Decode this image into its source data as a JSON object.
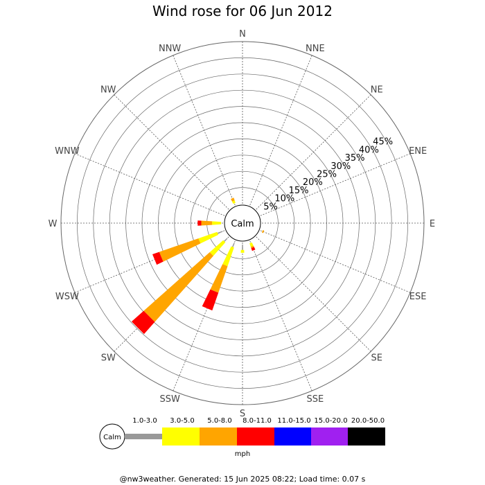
{
  "title": "Wind rose for 06 Jun 2012",
  "footer": "@nw3weather. Generated: 15 Jun 2025 08:22; Load time: 0.07 s",
  "chart_data": {
    "type": "windrose",
    "center_label": "Calm",
    "directions": [
      "N",
      "NNE",
      "NE",
      "ENE",
      "E",
      "ESE",
      "SE",
      "SSE",
      "S",
      "SSW",
      "SW",
      "WSW",
      "W",
      "WNW",
      "NW",
      "NNW"
    ],
    "radial_ticks": [
      "5%",
      "10%",
      "15%",
      "20%",
      "25%",
      "30%",
      "35%",
      "40%",
      "45%"
    ],
    "radial_max": 45,
    "speed_bins": [
      {
        "label": "1.0-3.0",
        "color": "#999999"
      },
      {
        "label": "3.0-5.0",
        "color": "#ffff00"
      },
      {
        "label": "5.0-8.0",
        "color": "#ffa500"
      },
      {
        "label": "8.0-11.0",
        "color": "#ff0000"
      },
      {
        "label": "11.0-15.0",
        "color": "#0000ff"
      },
      {
        "label": "15.0-20.0",
        "color": "#a020f0"
      },
      {
        "label": "20.0-50.0",
        "color": "#000000"
      }
    ],
    "unit": "mph",
    "values": [
      [
        0,
        0,
        0,
        0,
        0,
        0,
        0
      ],
      [
        0,
        0,
        0,
        0,
        0,
        0,
        0
      ],
      [
        0,
        0,
        0,
        0,
        0,
        0,
        0
      ],
      [
        0,
        0,
        0,
        0,
        0,
        0,
        0
      ],
      [
        0,
        0,
        0,
        0,
        0,
        0,
        0
      ],
      [
        0,
        0,
        0.4,
        0,
        0,
        0,
        0
      ],
      [
        0,
        0,
        0,
        0,
        0,
        0,
        0
      ],
      [
        0,
        1.0,
        0.4,
        0.8,
        0,
        0,
        0
      ],
      [
        1.5,
        0.8,
        0,
        0,
        0,
        0,
        0
      ],
      [
        1.2,
        5.5,
        7.8,
        5.2,
        0,
        0,
        0
      ],
      [
        1.2,
        5.0,
        24.5,
        4.5,
        0,
        0,
        0
      ],
      [
        1.5,
        5.5,
        11.5,
        2.0,
        0,
        0,
        0
      ],
      [
        0,
        2.5,
        3.0,
        1.0,
        0,
        0,
        0
      ],
      [
        0,
        0,
        0,
        0,
        0,
        0,
        0
      ],
      [
        0,
        0,
        0,
        0,
        0,
        0,
        0
      ],
      [
        0,
        0.7,
        0.8,
        0,
        0,
        0,
        0
      ]
    ]
  }
}
